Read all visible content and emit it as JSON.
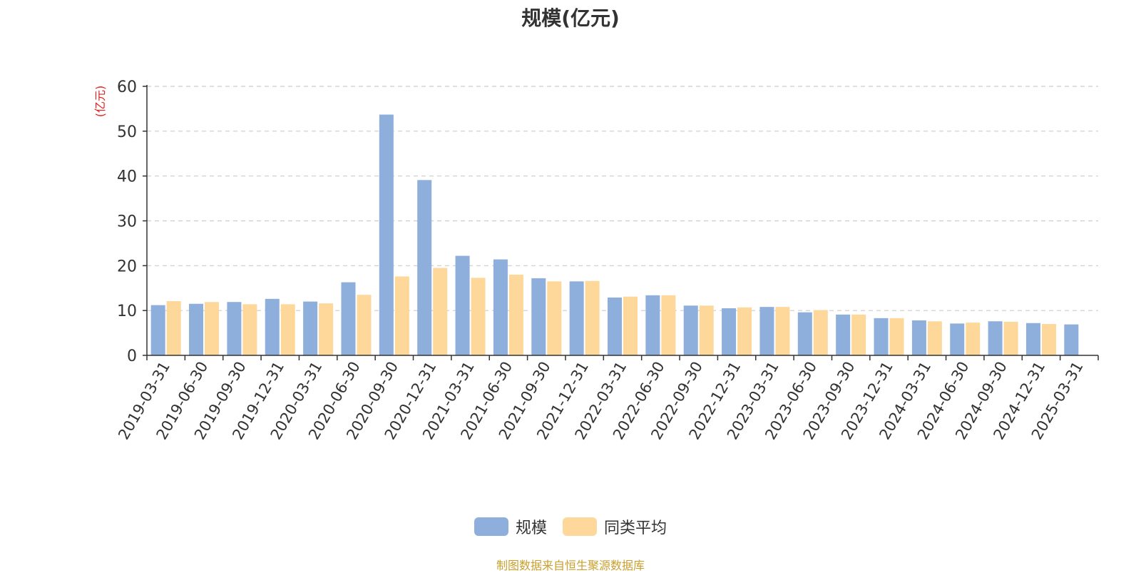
{
  "chart_data": {
    "type": "bar",
    "title": "规模(亿元)",
    "ylabel": "(亿元)",
    "xlabel": "",
    "ylim": [
      0,
      60
    ],
    "yticks": [
      0,
      10,
      20,
      30,
      40,
      50,
      60
    ],
    "grid": true,
    "legend_position": "bottom-center",
    "categories": [
      "2019-03-31",
      "2019-06-30",
      "2019-09-30",
      "2019-12-31",
      "2020-03-31",
      "2020-06-30",
      "2020-09-30",
      "2020-12-31",
      "2021-03-31",
      "2021-06-30",
      "2021-09-30",
      "2021-12-31",
      "2022-03-31",
      "2022-06-30",
      "2022-09-30",
      "2022-12-31",
      "2023-03-31",
      "2023-06-30",
      "2023-09-30",
      "2023-12-31",
      "2024-03-31",
      "2024-06-30",
      "2024-09-30",
      "2024-12-31",
      "2025-03-31"
    ],
    "series": [
      {
        "name": "规模",
        "color": "#8eaedb",
        "values": [
          11.2,
          11.5,
          11.9,
          12.6,
          12.0,
          16.3,
          53.7,
          39.1,
          22.2,
          21.4,
          17.2,
          16.5,
          12.9,
          13.4,
          11.1,
          10.5,
          10.8,
          9.6,
          9.1,
          8.3,
          7.8,
          7.1,
          7.6,
          7.2,
          6.9
        ]
      },
      {
        "name": "同类平均",
        "color": "#fdd89a",
        "values": [
          12.1,
          11.9,
          11.4,
          11.4,
          11.6,
          13.5,
          17.6,
          19.5,
          17.3,
          18.0,
          16.5,
          16.6,
          13.1,
          13.4,
          11.1,
          10.7,
          10.8,
          10.1,
          9.1,
          8.3,
          7.6,
          7.3,
          7.5,
          7.0,
          null
        ]
      }
    ]
  },
  "source_note": "制图数据来自恒生聚源数据库"
}
